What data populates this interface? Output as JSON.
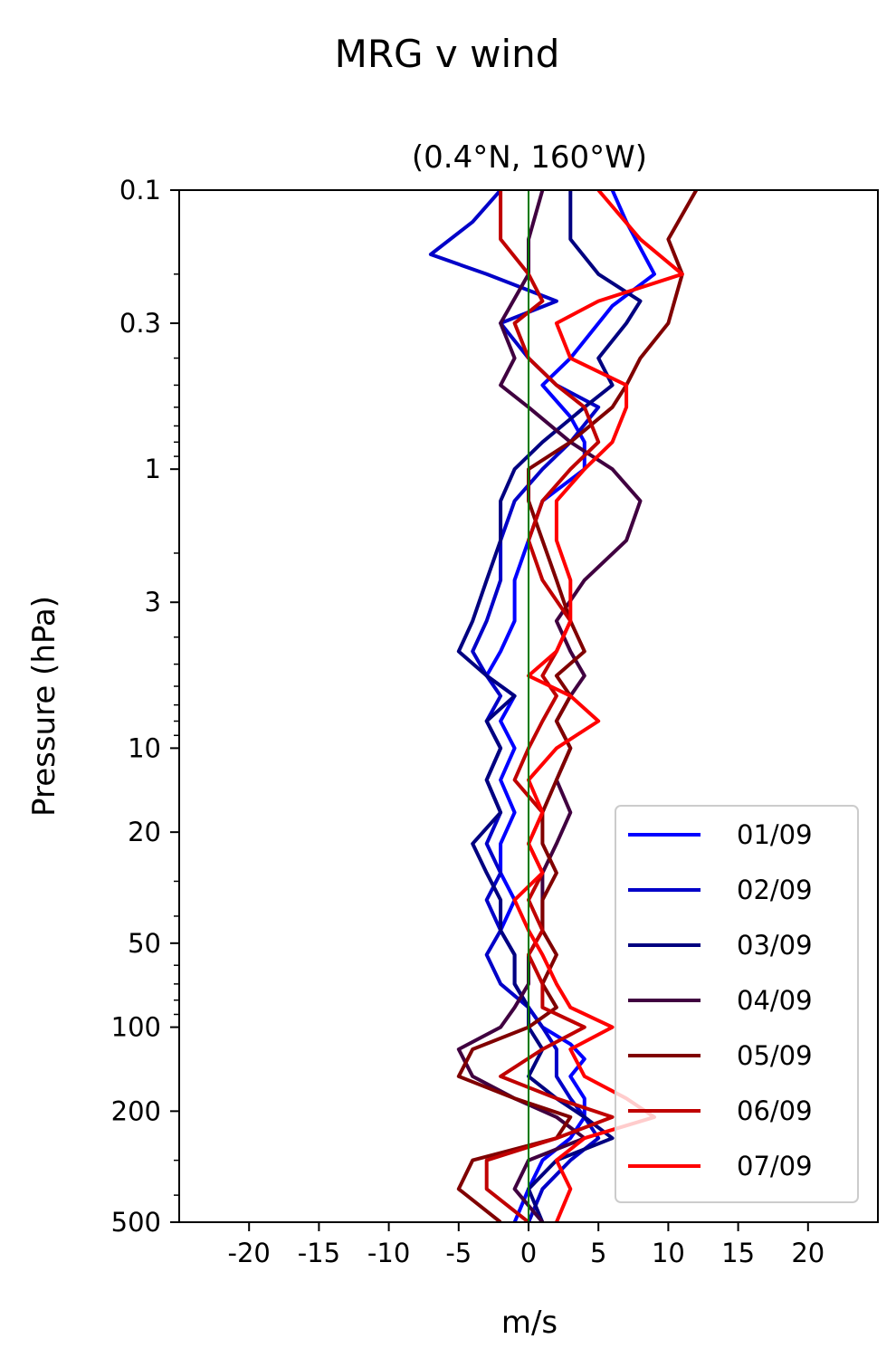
{
  "chart_data": {
    "type": "line",
    "title": "MRG v wind",
    "subtitle": "(0.4°N, 160°W)",
    "xlabel": "m/s",
    "ylabel": "Pressure (hPa)",
    "xlim": [
      -25,
      25
    ],
    "ylim": [
      500,
      0.1
    ],
    "y_scale": "log",
    "x_ticks": [
      -20,
      -15,
      -10,
      -5,
      0,
      5,
      10,
      15,
      20
    ],
    "x_tick_labels": [
      "-20",
      "-15",
      "-10",
      "-5",
      "0",
      "5",
      "10",
      "15",
      "20"
    ],
    "y_ticks": [
      0.1,
      0.3,
      1,
      3,
      10,
      20,
      50,
      100,
      200,
      500
    ],
    "y_tick_labels": [
      "0.1",
      "0.3",
      "1",
      "3",
      "10",
      "20",
      "50",
      "100",
      "200",
      "500"
    ],
    "legend_position": "lower-right",
    "zero_line_color": "#007a00",
    "series": [
      {
        "name": "01/09",
        "color": "#0000ff",
        "points": [
          [
            6,
            0.1
          ],
          [
            7,
            0.13
          ],
          [
            9,
            0.2
          ],
          [
            6,
            0.26
          ],
          [
            3,
            0.4
          ],
          [
            1,
            0.5
          ],
          [
            3,
            0.65
          ],
          [
            4,
            0.8
          ],
          [
            4,
            1
          ],
          [
            1,
            1.3
          ],
          [
            0,
            1.8
          ],
          [
            -1,
            2.5
          ],
          [
            -1,
            3.5
          ],
          [
            -2,
            4.5
          ],
          [
            -3,
            5.5
          ],
          [
            -1,
            6.5
          ],
          [
            -2,
            8
          ],
          [
            -1,
            10
          ],
          [
            -2,
            13
          ],
          [
            -1,
            17
          ],
          [
            -2,
            22
          ],
          [
            -2,
            28
          ],
          [
            -1,
            35
          ],
          [
            -2,
            45
          ],
          [
            -1,
            55
          ],
          [
            -1,
            70
          ],
          [
            0,
            85
          ],
          [
            1,
            100
          ],
          [
            3,
            115
          ],
          [
            4,
            130
          ],
          [
            3,
            150
          ],
          [
            4,
            180
          ],
          [
            4,
            210
          ],
          [
            3,
            250
          ],
          [
            1,
            300
          ],
          [
            0,
            380
          ],
          [
            -1,
            500
          ]
        ]
      },
      {
        "name": "02/09",
        "color": "#0000c8",
        "points": [
          [
            -2,
            0.1
          ],
          [
            -4,
            0.13
          ],
          [
            -7,
            0.17
          ],
          [
            -3,
            0.2
          ],
          [
            2,
            0.25
          ],
          [
            -2,
            0.3
          ],
          [
            0,
            0.4
          ],
          [
            2,
            0.5
          ],
          [
            5,
            0.6
          ],
          [
            3,
            0.8
          ],
          [
            1,
            1
          ],
          [
            -1,
            1.3
          ],
          [
            -2,
            1.8
          ],
          [
            -2,
            2.5
          ],
          [
            -3,
            3.5
          ],
          [
            -4,
            4.5
          ],
          [
            -3,
            5.5
          ],
          [
            -2,
            6.5
          ],
          [
            -3,
            8
          ],
          [
            -2,
            10
          ],
          [
            -3,
            13
          ],
          [
            -2,
            17
          ],
          [
            -3,
            22
          ],
          [
            -2,
            28
          ],
          [
            -3,
            35
          ],
          [
            -2,
            45
          ],
          [
            -3,
            55
          ],
          [
            -2,
            70
          ],
          [
            0,
            85
          ],
          [
            1,
            100
          ],
          [
            2,
            120
          ],
          [
            2,
            150
          ],
          [
            3,
            180
          ],
          [
            4,
            210
          ],
          [
            5,
            250
          ],
          [
            3,
            300
          ],
          [
            1,
            380
          ],
          [
            0,
            500
          ]
        ]
      },
      {
        "name": "03/09",
        "color": "#000080",
        "points": [
          [
            3,
            0.1
          ],
          [
            3,
            0.15
          ],
          [
            5,
            0.2
          ],
          [
            8,
            0.25
          ],
          [
            7,
            0.3
          ],
          [
            5,
            0.4
          ],
          [
            6,
            0.5
          ],
          [
            4,
            0.6
          ],
          [
            1,
            0.8
          ],
          [
            -1,
            1
          ],
          [
            -2,
            1.3
          ],
          [
            -2,
            1.8
          ],
          [
            -3,
            2.5
          ],
          [
            -4,
            3.5
          ],
          [
            -5,
            4.5
          ],
          [
            -3,
            5.5
          ],
          [
            -1,
            6.5
          ],
          [
            -3,
            8
          ],
          [
            -2,
            10
          ],
          [
            -3,
            13
          ],
          [
            -2,
            17
          ],
          [
            -4,
            22
          ],
          [
            -3,
            28
          ],
          [
            -2,
            35
          ],
          [
            -2,
            45
          ],
          [
            -1,
            55
          ],
          [
            -1,
            70
          ],
          [
            0,
            85
          ],
          [
            0,
            100
          ],
          [
            1,
            120
          ],
          [
            0,
            150
          ],
          [
            2,
            180
          ],
          [
            4,
            210
          ],
          [
            6,
            250
          ],
          [
            2,
            300
          ],
          [
            0,
            380
          ],
          [
            1,
            500
          ]
        ]
      },
      {
        "name": "04/09",
        "color": "#400040",
        "points": [
          [
            1,
            0.1
          ],
          [
            0,
            0.15
          ],
          [
            0,
            0.2
          ],
          [
            -2,
            0.3
          ],
          [
            -1,
            0.4
          ],
          [
            -2,
            0.5
          ],
          [
            0,
            0.6
          ],
          [
            3,
            0.8
          ],
          [
            6,
            1
          ],
          [
            8,
            1.3
          ],
          [
            7,
            1.8
          ],
          [
            4,
            2.5
          ],
          [
            2,
            3.5
          ],
          [
            3,
            4.5
          ],
          [
            4,
            5.5
          ],
          [
            3,
            6.5
          ],
          [
            2,
            8
          ],
          [
            3,
            10
          ],
          [
            2,
            13
          ],
          [
            3,
            17
          ],
          [
            2,
            22
          ],
          [
            1,
            28
          ],
          [
            1,
            35
          ],
          [
            1,
            45
          ],
          [
            0,
            55
          ],
          [
            0,
            70
          ],
          [
            -1,
            85
          ],
          [
            -2,
            100
          ],
          [
            -5,
            120
          ],
          [
            -4,
            150
          ],
          [
            -1,
            180
          ],
          [
            2,
            210
          ],
          [
            4,
            250
          ],
          [
            0,
            300
          ],
          [
            -1,
            380
          ],
          [
            1,
            500
          ]
        ]
      },
      {
        "name": "05/09",
        "color": "#800000",
        "points": [
          [
            12,
            0.1
          ],
          [
            10,
            0.15
          ],
          [
            11,
            0.2
          ],
          [
            10,
            0.3
          ],
          [
            8,
            0.4
          ],
          [
            7,
            0.5
          ],
          [
            6,
            0.6
          ],
          [
            3,
            0.8
          ],
          [
            0,
            1
          ],
          [
            0,
            1.3
          ],
          [
            1,
            1.8
          ],
          [
            2,
            2.5
          ],
          [
            3,
            3.5
          ],
          [
            4,
            4.5
          ],
          [
            2,
            5.5
          ],
          [
            3,
            6.5
          ],
          [
            2,
            8
          ],
          [
            3,
            10
          ],
          [
            2,
            13
          ],
          [
            1,
            17
          ],
          [
            1,
            22
          ],
          [
            2,
            28
          ],
          [
            1,
            35
          ],
          [
            1,
            45
          ],
          [
            2,
            55
          ],
          [
            1,
            70
          ],
          [
            2,
            85
          ],
          [
            0,
            100
          ],
          [
            -4,
            120
          ],
          [
            -5,
            150
          ],
          [
            -1,
            180
          ],
          [
            3,
            210
          ],
          [
            2,
            250
          ],
          [
            -4,
            300
          ],
          [
            -5,
            380
          ],
          [
            -2,
            500
          ]
        ]
      },
      {
        "name": "06/09",
        "color": "#c00000",
        "points": [
          [
            -2,
            0.1
          ],
          [
            -2,
            0.15
          ],
          [
            0,
            0.2
          ],
          [
            1,
            0.25
          ],
          [
            -1,
            0.3
          ],
          [
            0,
            0.4
          ],
          [
            2,
            0.5
          ],
          [
            4,
            0.6
          ],
          [
            5,
            0.8
          ],
          [
            3,
            1
          ],
          [
            1,
            1.3
          ],
          [
            0,
            1.8
          ],
          [
            1,
            2.5
          ],
          [
            3,
            3.5
          ],
          [
            2,
            4.5
          ],
          [
            1,
            5.5
          ],
          [
            2,
            6.5
          ],
          [
            1,
            8
          ],
          [
            0,
            10
          ],
          [
            -1,
            13
          ],
          [
            1,
            17
          ],
          [
            0,
            22
          ],
          [
            1,
            28
          ],
          [
            0,
            35
          ],
          [
            1,
            45
          ],
          [
            0,
            55
          ],
          [
            1,
            70
          ],
          [
            1,
            85
          ],
          [
            4,
            100
          ],
          [
            1,
            120
          ],
          [
            -2,
            150
          ],
          [
            2,
            180
          ],
          [
            6,
            210
          ],
          [
            2,
            250
          ],
          [
            -3,
            300
          ],
          [
            -3,
            380
          ],
          [
            0,
            500
          ]
        ]
      },
      {
        "name": "07/09",
        "color": "#ff0000",
        "points": [
          [
            5,
            0.1
          ],
          [
            8,
            0.15
          ],
          [
            11,
            0.2
          ],
          [
            5,
            0.25
          ],
          [
            2,
            0.3
          ],
          [
            3,
            0.4
          ],
          [
            7,
            0.5
          ],
          [
            7,
            0.6
          ],
          [
            6,
            0.8
          ],
          [
            4,
            1
          ],
          [
            2,
            1.3
          ],
          [
            2,
            1.8
          ],
          [
            3,
            2.5
          ],
          [
            3,
            3.5
          ],
          [
            2,
            4.5
          ],
          [
            0,
            5.5
          ],
          [
            3,
            6.5
          ],
          [
            5,
            8
          ],
          [
            2,
            10
          ],
          [
            0,
            13
          ],
          [
            1,
            17
          ],
          [
            0,
            22
          ],
          [
            1,
            28
          ],
          [
            -1,
            35
          ],
          [
            0,
            45
          ],
          [
            1,
            55
          ],
          [
            2,
            70
          ],
          [
            3,
            85
          ],
          [
            6,
            100
          ],
          [
            3,
            120
          ],
          [
            4,
            150
          ],
          [
            7,
            180
          ],
          [
            9,
            210
          ],
          [
            4,
            250
          ],
          [
            2,
            300
          ],
          [
            3,
            380
          ],
          [
            2,
            500
          ]
        ]
      }
    ]
  }
}
